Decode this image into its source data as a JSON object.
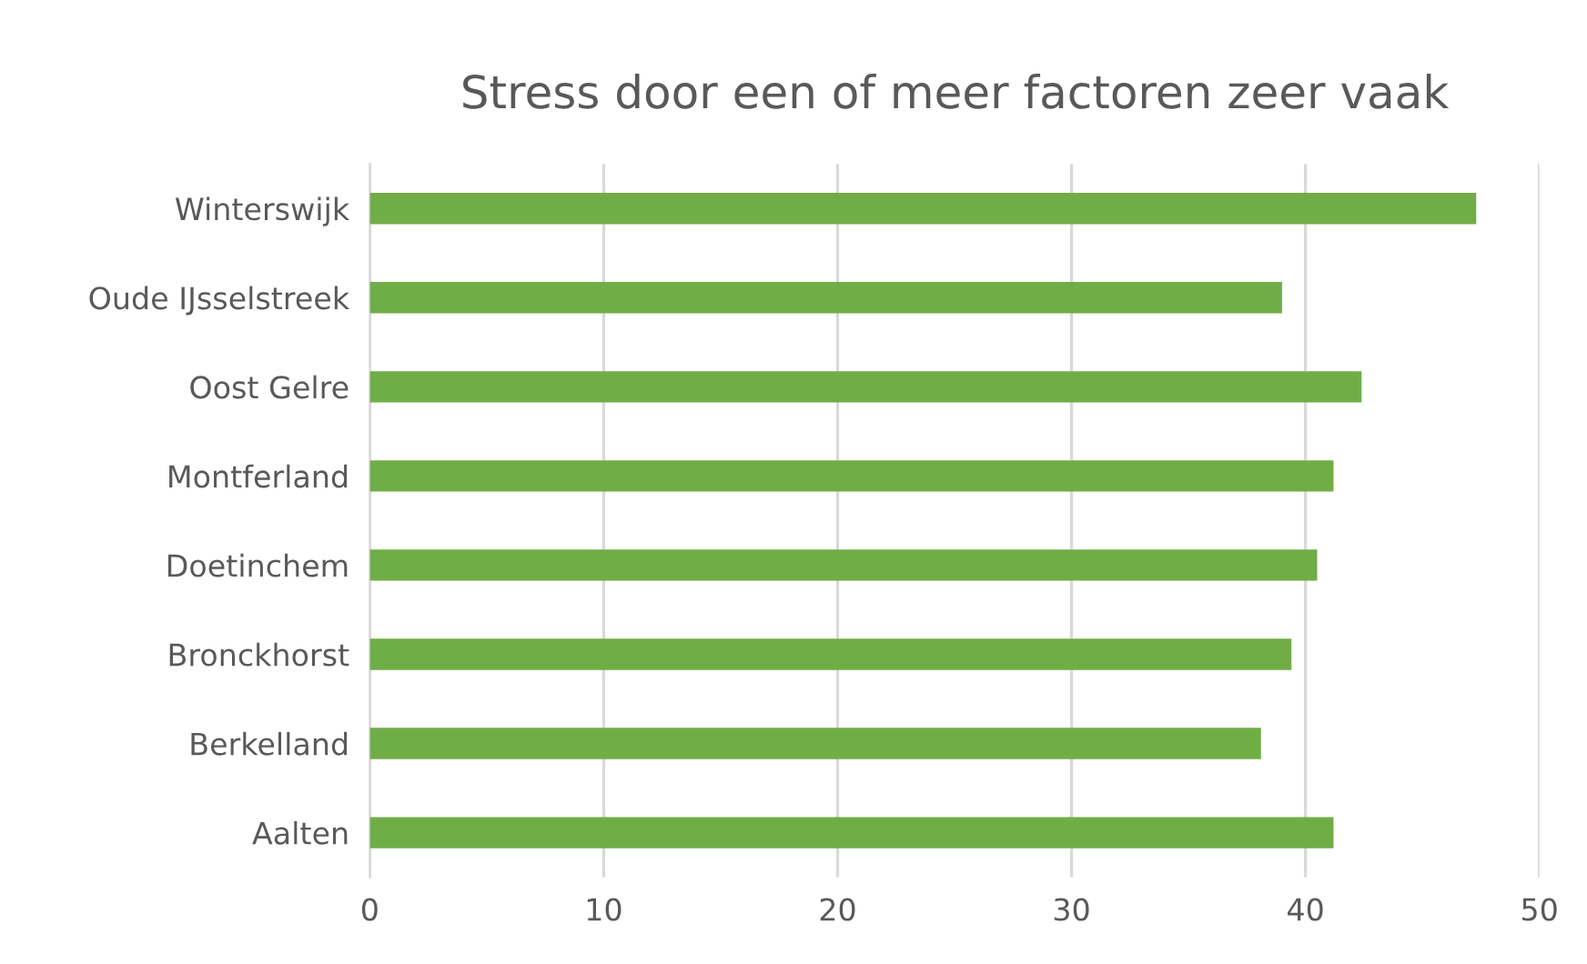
{
  "chart_data": {
    "type": "bar",
    "orientation": "horizontal",
    "title": "Stress door een of meer factoren zeer vaak",
    "categories": [
      "Winterswijk",
      "Oude IJsselstreek",
      "Oost Gelre",
      "Montferland",
      "Doetinchem",
      "Bronckhorst",
      "Berkelland",
      "Aalten"
    ],
    "values": [
      47.3,
      39.0,
      42.4,
      41.2,
      40.5,
      39.4,
      38.1,
      41.2
    ],
    "color": "#70ad47",
    "xlim": [
      0,
      50
    ],
    "xticks": [
      0,
      10,
      20,
      30,
      40,
      50
    ],
    "grid": "x"
  }
}
